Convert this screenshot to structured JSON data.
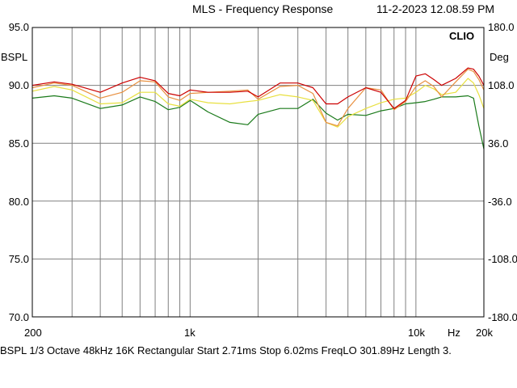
{
  "header": {
    "title": "MLS - Frequency Response",
    "timestamp": "11-2-2023 12.08.59 PM"
  },
  "brand": "CLIO",
  "y_left_unit": "BSPL",
  "y_right_unit": "Deg",
  "x_unit": "Hz",
  "footer": "BSPL   1/3 Octave   48kHz   16K   Rectangular   Start 2.71ms     Stop 6.02ms     FreqLO 301.89Hz     Length 3.",
  "colors": {
    "background": "#ffffff",
    "grid": "#808080",
    "frame": "#000000"
  },
  "chart_data": {
    "type": "line",
    "x_scale": "log",
    "xlim": [
      200,
      20000
    ],
    "ylim": [
      70,
      95
    ],
    "y2lim": [
      -180,
      180
    ],
    "grid": true,
    "y_ticks": [
      "95.0",
      "90.0",
      "85.0",
      "80.0",
      "75.0",
      "70.0"
    ],
    "y2_ticks": [
      "180.0",
      "108.0",
      "36.0",
      "-36.0",
      "-108.0",
      "-180.0"
    ],
    "x_ticks": [
      {
        "value": 200,
        "label": "200"
      },
      {
        "value": 1000,
        "label": "1k"
      },
      {
        "value": 10000,
        "label": "10k"
      },
      {
        "value": 20000,
        "label": "20k"
      }
    ],
    "series": [
      {
        "color": "#cc0000",
        "x": [
          200,
          250,
          300,
          400,
          500,
          600,
          700,
          800,
          900,
          1000,
          1200,
          1500,
          1800,
          2000,
          2500,
          3000,
          3500,
          4000,
          4500,
          5000,
          6000,
          7000,
          8000,
          9000,
          10000,
          11000,
          12000,
          13000,
          15000,
          17000,
          18000,
          19000,
          20000
        ],
        "y": [
          90.0,
          90.3,
          90.1,
          89.4,
          90.2,
          90.7,
          90.4,
          89.3,
          89.1,
          89.6,
          89.4,
          89.4,
          89.5,
          89.0,
          90.2,
          90.2,
          89.8,
          88.4,
          88.4,
          89.0,
          89.8,
          89.4,
          88.0,
          88.7,
          90.8,
          91.0,
          90.5,
          90.0,
          90.6,
          91.5,
          91.4,
          90.8,
          90.0
        ]
      },
      {
        "color": "#e89040",
        "x": [
          200,
          250,
          300,
          400,
          500,
          600,
          700,
          800,
          900,
          1000,
          1200,
          1500,
          1800,
          2000,
          2500,
          3000,
          3500,
          4000,
          4500,
          5000,
          6000,
          7000,
          8000,
          9000,
          10000,
          11000,
          12000,
          13000,
          15000,
          17000,
          18000,
          19000,
          20000
        ],
        "y": [
          89.8,
          90.2,
          90.0,
          88.9,
          89.4,
          90.4,
          90.3,
          89.0,
          88.7,
          89.3,
          89.4,
          89.5,
          89.6,
          88.8,
          89.9,
          90.0,
          89.3,
          86.8,
          86.5,
          88.0,
          89.8,
          89.6,
          87.9,
          88.6,
          89.9,
          90.4,
          89.9,
          89.0,
          90.3,
          91.4,
          91.2,
          90.5,
          89.6
        ]
      },
      {
        "color": "#e8e040",
        "x": [
          200,
          250,
          300,
          400,
          500,
          600,
          700,
          800,
          900,
          1000,
          1200,
          1500,
          1800,
          2000,
          2500,
          3000,
          3500,
          4000,
          4500,
          5000,
          6000,
          7000,
          8000,
          9000,
          10000,
          11000,
          12000,
          13000,
          15000,
          17000,
          18000,
          19000,
          20000
        ],
        "y": [
          89.5,
          89.9,
          89.6,
          88.4,
          88.5,
          89.4,
          89.4,
          88.4,
          88.2,
          88.8,
          88.5,
          88.4,
          88.6,
          88.7,
          89.2,
          89.0,
          88.7,
          86.8,
          86.4,
          87.3,
          88.0,
          88.5,
          88.8,
          88.9,
          89.4,
          90.0,
          89.7,
          89.2,
          89.4,
          90.6,
          90.2,
          89.2,
          88.0
        ]
      },
      {
        "color": "#1a7a1a",
        "x": [
          200,
          250,
          300,
          400,
          500,
          600,
          700,
          800,
          900,
          1000,
          1200,
          1500,
          1800,
          2000,
          2500,
          3000,
          3500,
          4000,
          4500,
          5000,
          6000,
          7000,
          8000,
          9000,
          10000,
          11000,
          12000,
          13000,
          15000,
          17000,
          18000,
          19000,
          20000
        ],
        "y": [
          88.9,
          89.1,
          88.9,
          88.0,
          88.3,
          89.0,
          88.6,
          87.9,
          88.1,
          88.7,
          87.7,
          86.8,
          86.6,
          87.5,
          88.0,
          88.0,
          88.8,
          87.6,
          87.0,
          87.5,
          87.4,
          87.8,
          88.0,
          88.4,
          88.5,
          88.6,
          88.8,
          89.0,
          89.0,
          89.1,
          88.9,
          86.5,
          84.5
        ]
      }
    ]
  }
}
